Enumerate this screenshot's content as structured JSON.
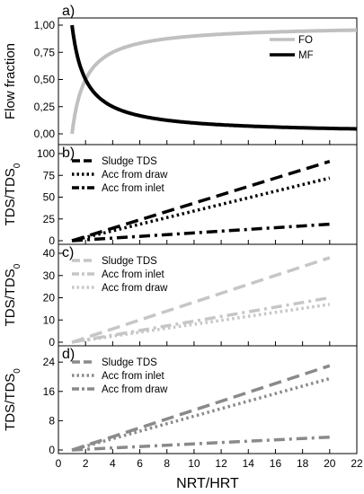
{
  "chart_data": [
    {
      "panel": "a)",
      "type": "line",
      "ylabel": "Flow fraction",
      "xlim": [
        0,
        22
      ],
      "ylim": [
        0,
        1
      ],
      "yticks": [
        "0,00",
        "0,25",
        "0,50",
        "0,75",
        "1,00"
      ],
      "legend": "top-right",
      "series": [
        {
          "name": "FO",
          "color": "#c0c0c0",
          "style": "solid",
          "x": [
            1,
            1.25,
            1.5,
            1.75,
            2,
            2.5,
            3,
            3.5,
            4,
            5,
            6,
            7,
            8,
            9,
            10,
            12,
            14,
            16,
            18,
            20,
            22
          ],
          "y": [
            0.0,
            0.2,
            0.33,
            0.43,
            0.5,
            0.6,
            0.67,
            0.71,
            0.75,
            0.8,
            0.83,
            0.86,
            0.875,
            0.89,
            0.9,
            0.92,
            0.93,
            0.94,
            0.94,
            0.95,
            0.95
          ]
        },
        {
          "name": "MF",
          "color": "#000000",
          "style": "solid",
          "x": [
            1,
            1.25,
            1.5,
            1.75,
            2,
            2.5,
            3,
            3.5,
            4,
            5,
            6,
            7,
            8,
            9,
            10,
            12,
            14,
            16,
            18,
            20,
            22
          ],
          "y": [
            1.0,
            0.8,
            0.67,
            0.57,
            0.5,
            0.4,
            0.33,
            0.29,
            0.25,
            0.2,
            0.17,
            0.14,
            0.125,
            0.11,
            0.1,
            0.08,
            0.07,
            0.06,
            0.06,
            0.05,
            0.05
          ]
        }
      ]
    },
    {
      "panel": "b)",
      "type": "line",
      "ylabel": "TDS/TDS",
      "ylabel_sub": "0",
      "xlim": [
        0,
        22
      ],
      "ylim": [
        0,
        100
      ],
      "yticks": [
        0,
        25,
        50,
        75,
        100
      ],
      "legend": "top-left",
      "series": [
        {
          "name": "Sludge TDS",
          "color": "#000000",
          "style": "dash",
          "x": [
            1,
            20
          ],
          "y": [
            0,
            91
          ]
        },
        {
          "name": "Acc from draw",
          "color": "#000000",
          "style": "dot",
          "x": [
            1,
            20
          ],
          "y": [
            0,
            72
          ]
        },
        {
          "name": "Acc from inlet",
          "color": "#000000",
          "style": "dashdot",
          "x": [
            1,
            20
          ],
          "y": [
            0,
            19
          ]
        }
      ]
    },
    {
      "panel": "c)",
      "type": "line",
      "ylabel": "TDS/TDS",
      "ylabel_sub": "0",
      "xlim": [
        0,
        22
      ],
      "ylim": [
        0,
        40
      ],
      "yticks": [
        0,
        10,
        20,
        30,
        40
      ],
      "legend": "top-left",
      "series": [
        {
          "name": "Sludge TDS",
          "color": "#c6c6c6",
          "style": "dash",
          "x": [
            1,
            20
          ],
          "y": [
            0,
            38
          ]
        },
        {
          "name": "Acc from inlet",
          "color": "#c6c6c6",
          "style": "dashdot",
          "x": [
            1,
            20
          ],
          "y": [
            0,
            20
          ]
        },
        {
          "name": "Acc from draw",
          "color": "#c6c6c6",
          "style": "dot",
          "x": [
            1,
            20
          ],
          "y": [
            0,
            17
          ]
        }
      ]
    },
    {
      "panel": "d)",
      "type": "line",
      "ylabel": "TDS/TDS",
      "ylabel_sub": "0",
      "xlabel": "NRT/HRT",
      "xlim": [
        0,
        22
      ],
      "xticks": [
        0,
        2,
        4,
        6,
        8,
        10,
        12,
        14,
        16,
        18,
        20,
        22
      ],
      "ylim": [
        0,
        26
      ],
      "yticks": [
        0,
        8,
        16,
        24
      ],
      "legend": "top-left",
      "series": [
        {
          "name": "Sludge TDS",
          "color": "#8a8a8a",
          "style": "dash",
          "x": [
            1,
            20
          ],
          "y": [
            0,
            23
          ]
        },
        {
          "name": "Acc from inlet",
          "color": "#8a8a8a",
          "style": "dot",
          "x": [
            1,
            20
          ],
          "y": [
            0,
            19.5
          ]
        },
        {
          "name": "Acc from draw",
          "color": "#8a8a8a",
          "style": "dashdot",
          "x": [
            1,
            20
          ],
          "y": [
            0,
            3.5
          ]
        }
      ]
    }
  ]
}
